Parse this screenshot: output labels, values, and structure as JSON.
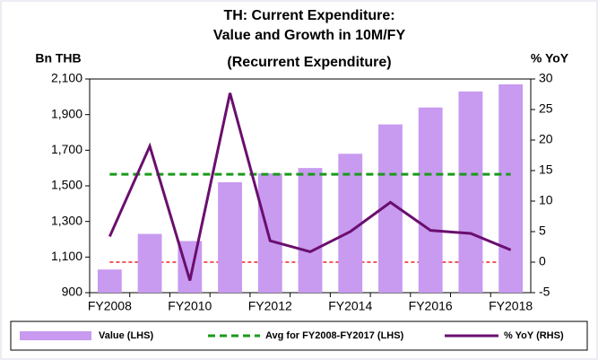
{
  "chart_data": {
    "type": "bar_line",
    "title": [
      "TH: Current Expenditure:",
      "Value and Growth in 10M/FY",
      "(Recurrent Expenditure)"
    ],
    "y_label": "Bn THB",
    "y2_label": "% YoY",
    "categories": [
      "FY2008",
      null,
      "FY2010",
      null,
      "FY2012",
      null,
      "FY2014",
      null,
      "FY2016",
      null,
      "FY2018"
    ],
    "series": [
      {
        "name": "Value (LHS)",
        "color": "#c89af0",
        "kind": "bar",
        "values": [
          1030,
          1230,
          1190,
          1520,
          1570,
          1600,
          1680,
          1845,
          1940,
          2030,
          2070
        ]
      },
      {
        "name": "% YoY (RHS)",
        "color": "#6a0e6e",
        "kind": "line",
        "axis": "y2",
        "values": [
          4.2,
          19,
          -3,
          27.7,
          3.5,
          1.7,
          5,
          9.8,
          5.2,
          4.7,
          2.0
        ]
      }
    ],
    "avg_line": {
      "name": "Avg for FY2008-FY2017 (LHS)",
      "color": "#1a9a1a",
      "value": 1565
    },
    "zero_line_color": "#ee2222",
    "ylim": [
      900,
      2100
    ],
    "yticks": [
      900,
      {
        "value": 1100,
        "label": "1,100"
      },
      {
        "value": 1300,
        "label": "1,300"
      },
      {
        "value": 1500,
        "label": "1,500"
      },
      {
        "value": 1700,
        "label": "1,700"
      },
      {
        "value": 1900,
        "label": "1,900"
      },
      {
        "value": 2100,
        "label": "2,100"
      }
    ],
    "y2lim": [
      -5,
      30
    ],
    "y2ticks": [
      -5,
      0,
      5,
      10,
      15,
      20,
      25,
      30
    ]
  }
}
